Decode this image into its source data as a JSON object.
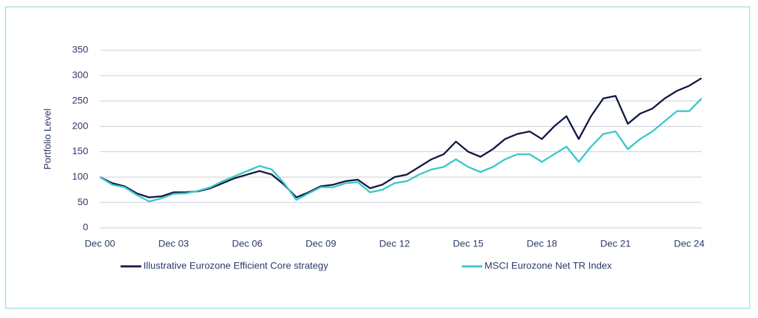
{
  "chart_data": {
    "type": "line",
    "y_label": "Portfolio Level",
    "categories": [
      "Dec 00",
      null,
      null,
      null,
      null,
      null,
      "Dec 03",
      null,
      null,
      null,
      null,
      null,
      "Dec 06",
      null,
      null,
      null,
      null,
      null,
      "Dec 09",
      null,
      null,
      null,
      null,
      null,
      "Dec 12",
      null,
      null,
      null,
      null,
      null,
      "Dec 15",
      null,
      null,
      null,
      null,
      null,
      "Dec 18",
      null,
      null,
      null,
      null,
      null,
      "Dec 21",
      null,
      null,
      null,
      null,
      null,
      "Dec 24",
      null
    ],
    "series": [
      {
        "name": "Illustrative Eurozone Efficient Core strategy",
        "color": "#141a45",
        "values": [
          100,
          88,
          82,
          68,
          60,
          62,
          70,
          70,
          72,
          78,
          88,
          98,
          105,
          112,
          105,
          85,
          60,
          70,
          82,
          85,
          92,
          95,
          78,
          85,
          100,
          105,
          120,
          135,
          145,
          170,
          150,
          140,
          155,
          175,
          185,
          190,
          175,
          200,
          220,
          175,
          220,
          255,
          260,
          205,
          225,
          235,
          255,
          270,
          280,
          295
        ]
      },
      {
        "name": "MSCI Eurozone Net TR Index",
        "color": "#3cc8c8",
        "values": [
          100,
          85,
          80,
          65,
          52,
          58,
          67,
          68,
          73,
          80,
          92,
          102,
          112,
          122,
          115,
          88,
          55,
          68,
          80,
          80,
          88,
          90,
          70,
          75,
          88,
          92,
          105,
          115,
          120,
          135,
          120,
          110,
          120,
          135,
          145,
          145,
          130,
          145,
          160,
          130,
          160,
          185,
          190,
          155,
          175,
          190,
          210,
          230,
          230,
          255
        ]
      }
    ],
    "ylim": [
      0,
      350
    ],
    "yticks": [
      0,
      50,
      100,
      150,
      200,
      250,
      300,
      350
    ],
    "grid": true
  }
}
